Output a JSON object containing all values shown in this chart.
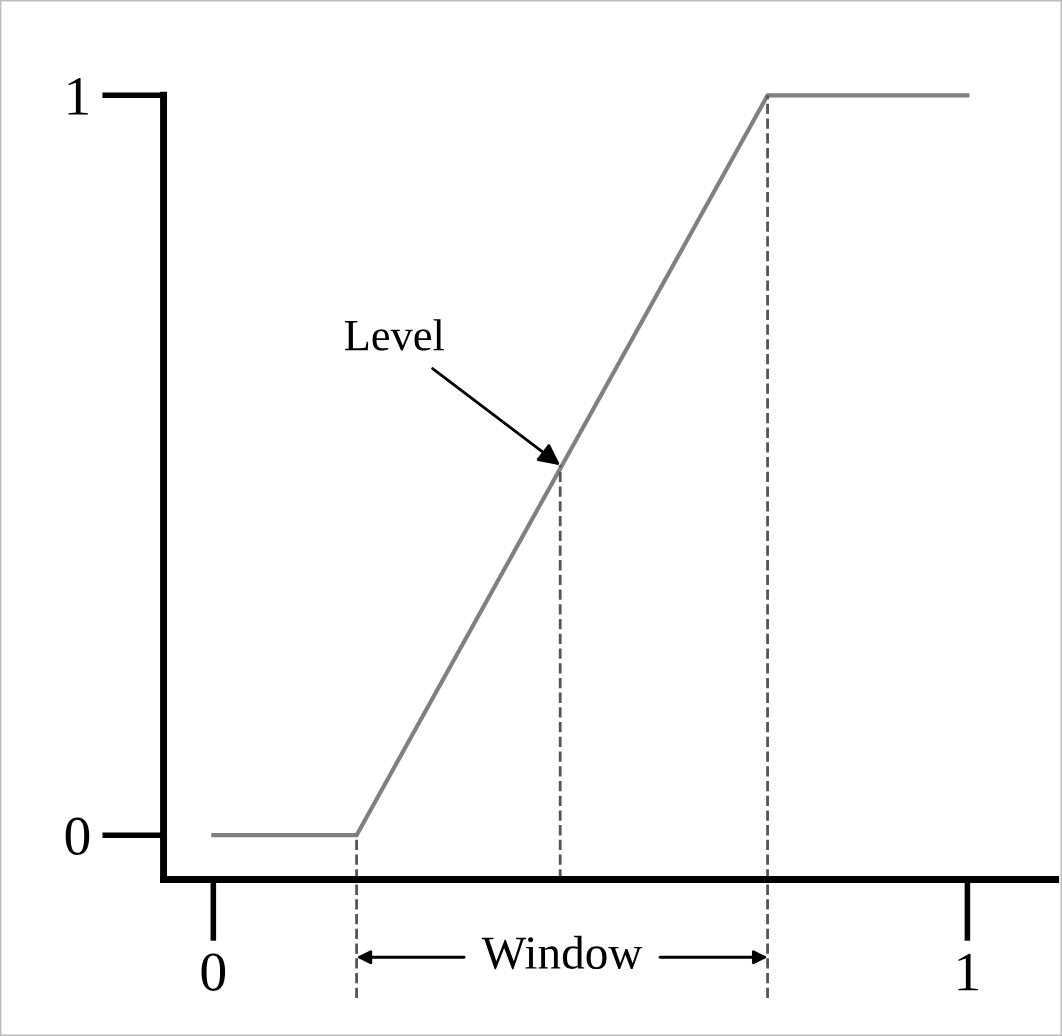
{
  "chart_data": {
    "type": "line",
    "x": [
      0,
      0.19,
      0.735,
      1
    ],
    "series": [
      {
        "color": "#808080",
        "values": [
          0,
          0,
          1,
          1
        ]
      },
      {
        "color": "#555555",
        "x": [
          0.19,
          0.19
        ],
        "values": [
          -0.06,
          0
        ],
        "line_style": "dashed"
      },
      {
        "color": "#555555",
        "x": [
          0.46,
          0.46
        ],
        "values": [
          -0.06,
          0.5
        ],
        "line_style": "dashed"
      },
      {
        "color": "#555555",
        "x": [
          0.735,
          0.735
        ],
        "values": [
          -0.06,
          1
        ],
        "line_style": "dashed"
      }
    ],
    "xlim": [
      -0.066,
      1.117
    ],
    "ylim": [
      -0.06,
      1
    ],
    "xticks": [
      0,
      1
    ],
    "yticks": [
      0,
      1
    ],
    "grid": false,
    "legend": false,
    "marker": "none",
    "line_style": "solid",
    "annotations": [
      {
        "text": "Level",
        "x": 0.46,
        "y": 0.5
      },
      "Window"
    ]
  }
}
